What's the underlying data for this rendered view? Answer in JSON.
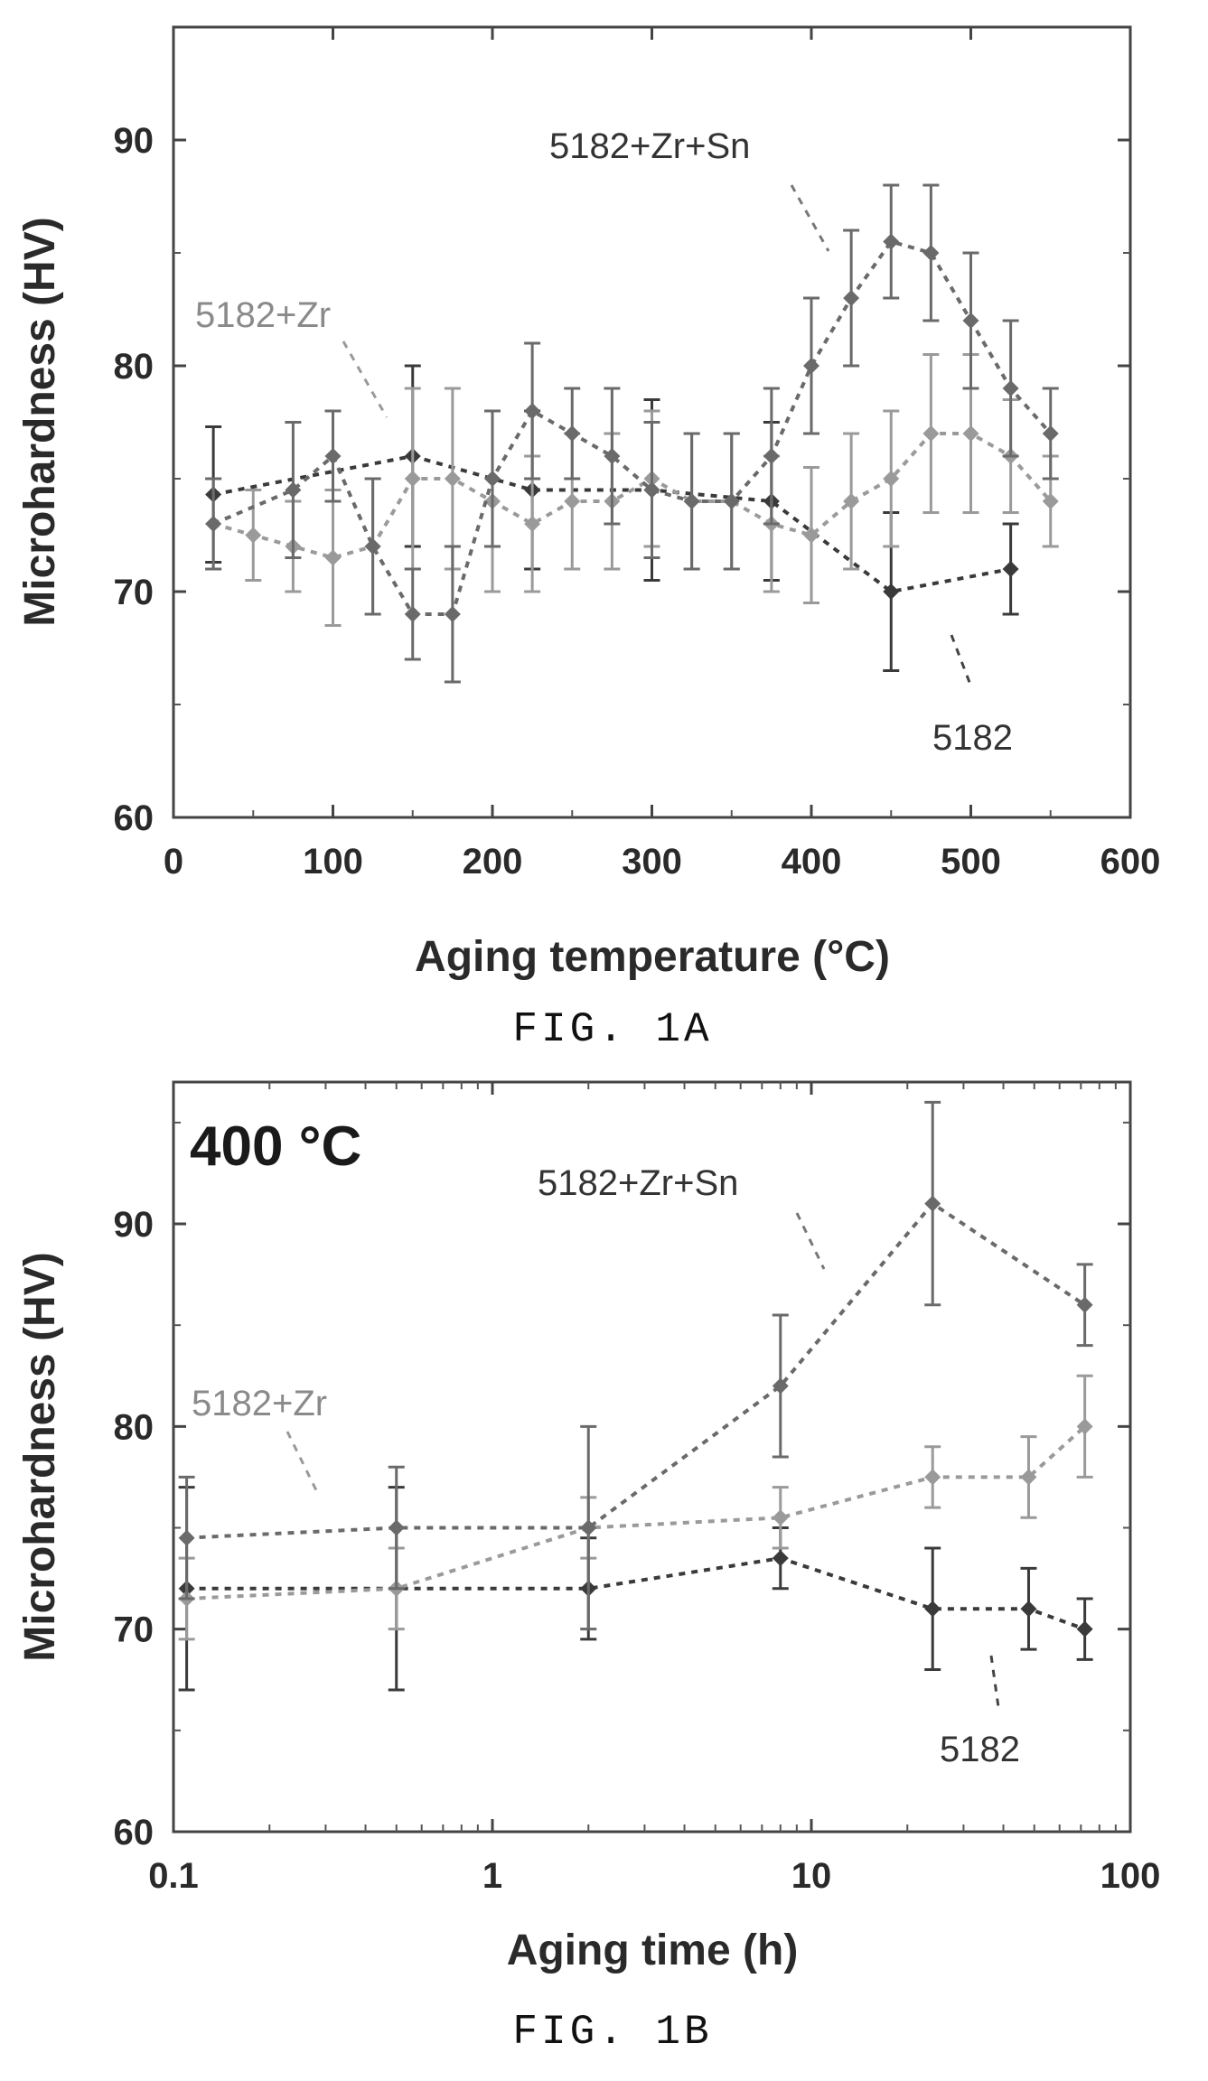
{
  "chart_data": [
    {
      "type": "line",
      "figure_label": "FIG. 1A",
      "xlabel": "Aging temperature (°C)",
      "ylabel": "Microhardness (HV)",
      "xlim": [
        0,
        600
      ],
      "ylim": [
        60,
        95
      ],
      "xticks": [
        0,
        100,
        200,
        300,
        400,
        500,
        600
      ],
      "yticks": [
        60,
        70,
        80,
        90
      ],
      "series": [
        {
          "name": "5182",
          "color": "#3a3a3a",
          "x": [
            25,
            150,
            225,
            300,
            375,
            450,
            525
          ],
          "y": [
            74.3,
            76,
            74.5,
            74.5,
            74,
            70,
            71
          ],
          "err": [
            3,
            4,
            3.5,
            4,
            3.5,
            3.5,
            2
          ]
        },
        {
          "name": "5182+Zr",
          "color": "#9a9a9a",
          "x": [
            25,
            50,
            75,
            100,
            125,
            150,
            175,
            200,
            225,
            250,
            275,
            300,
            325,
            350,
            375,
            400,
            425,
            450,
            475,
            500,
            525,
            550
          ],
          "y": [
            73,
            72.5,
            72,
            71.5,
            72,
            75,
            75,
            74,
            73,
            74,
            74,
            75,
            74,
            74,
            73,
            72.5,
            74,
            75,
            77,
            77,
            76,
            74
          ],
          "err": [
            2,
            2,
            2,
            3,
            3,
            4,
            4,
            4,
            3,
            3,
            3,
            3,
            3,
            3,
            3,
            3,
            3,
            3,
            3.5,
            3.5,
            2.5,
            2
          ]
        },
        {
          "name": "5182+Zr+Sn",
          "color": "#6a6a6a",
          "x": [
            25,
            75,
            100,
            125,
            150,
            175,
            200,
            225,
            250,
            275,
            300,
            325,
            350,
            375,
            400,
            425,
            450,
            475,
            500,
            525,
            550
          ],
          "y": [
            73,
            74.5,
            76,
            72,
            69,
            69,
            75,
            78,
            77,
            76,
            74.5,
            74,
            74,
            76,
            80,
            83,
            85.5,
            85,
            82,
            79,
            77
          ],
          "err": [
            2,
            3,
            2,
            3,
            2,
            3,
            3,
            3,
            2,
            3,
            3,
            3,
            3,
            3,
            3,
            3,
            2.5,
            3,
            3,
            3,
            2
          ]
        }
      ],
      "annotations": [
        "5182+Zr+Sn",
        "5182+Zr",
        "5182"
      ]
    },
    {
      "type": "line",
      "figure_label": "FIG. 1B",
      "title": "400 °C",
      "xlabel": "Aging time (h)",
      "ylabel": "Microhardness (HV)",
      "xscale": "log",
      "xlim": [
        0.1,
        100
      ],
      "ylim": [
        60,
        97
      ],
      "xticks": [
        0.1,
        1,
        10,
        100
      ],
      "xtick_labels": [
        "0.1",
        "1",
        "10",
        "100"
      ],
      "yticks": [
        60,
        70,
        80,
        90
      ],
      "series": [
        {
          "name": "5182",
          "color": "#3a3a3a",
          "x": [
            0.11,
            0.5,
            2,
            8,
            24,
            48,
            72
          ],
          "y": [
            72,
            72,
            72,
            73.5,
            71,
            71,
            70
          ],
          "err": [
            5,
            5,
            2.5,
            1.5,
            3,
            2,
            1.5
          ]
        },
        {
          "name": "5182+Zr",
          "color": "#9a9a9a",
          "x": [
            0.11,
            0.5,
            2,
            8,
            24,
            48,
            72
          ],
          "y": [
            71.5,
            72,
            75,
            75.5,
            77.5,
            77.5,
            80
          ],
          "err": [
            2,
            2,
            1.5,
            1.5,
            1.5,
            2,
            2.5
          ]
        },
        {
          "name": "5182+Zr+Sn",
          "color": "#6a6a6a",
          "x": [
            0.11,
            0.5,
            2,
            8,
            24,
            72
          ],
          "y": [
            74.5,
            75,
            75,
            82,
            91,
            86
          ],
          "err": [
            3,
            3,
            5,
            3.5,
            5,
            2
          ]
        }
      ],
      "annotations": [
        "5182+Zr+Sn",
        "5182+Zr",
        "5182"
      ]
    }
  ]
}
